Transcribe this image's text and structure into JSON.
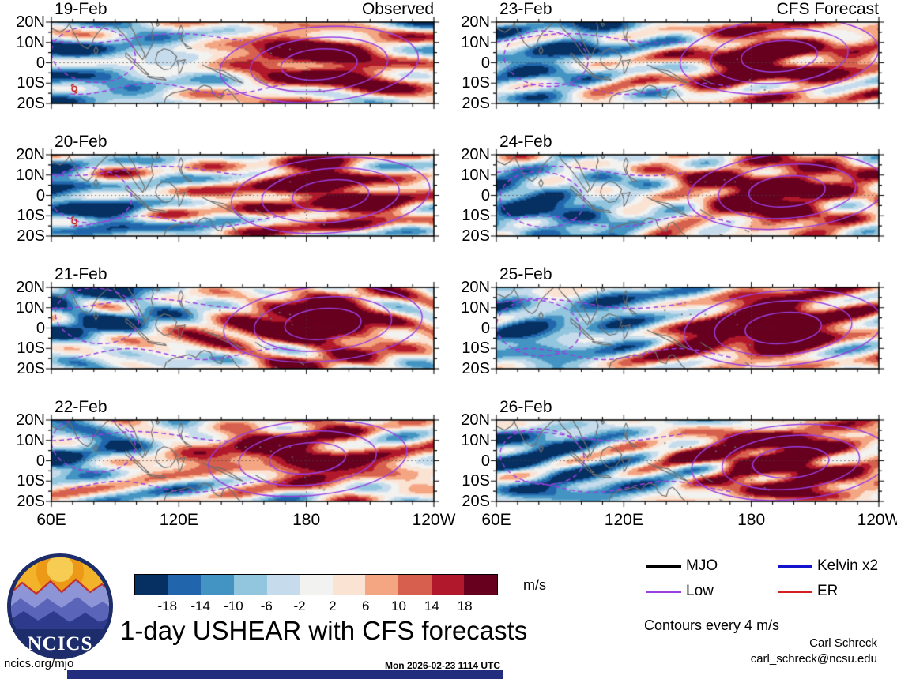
{
  "title": "1-day USHEAR with CFS forecasts",
  "columns": {
    "left_title": "Observed",
    "right_title": "CFS Forecast"
  },
  "panels": [
    {
      "date": "19-Feb",
      "column": "Observed"
    },
    {
      "date": "20-Feb",
      "column": "Observed"
    },
    {
      "date": "21-Feb",
      "column": "Observed"
    },
    {
      "date": "22-Feb",
      "column": "Observed"
    },
    {
      "date": "23-Feb",
      "column": "CFS Forecast"
    },
    {
      "date": "24-Feb",
      "column": "CFS Forecast"
    },
    {
      "date": "25-Feb",
      "column": "CFS Forecast"
    },
    {
      "date": "26-Feb",
      "column": "CFS Forecast"
    }
  ],
  "axes": {
    "y_ticks": [
      "20N",
      "10N",
      "0",
      "10S",
      "20S"
    ],
    "x_ticks": [
      "60E",
      "120E",
      "180",
      "120W"
    ]
  },
  "colorbar": {
    "colors": [
      "#053061",
      "#2166ac",
      "#4393c3",
      "#92c5de",
      "#c6dcec",
      "#f2f2f0",
      "#fbe3d4",
      "#f4a582",
      "#d6604d",
      "#b2182b",
      "#67001f"
    ],
    "ticks": [
      "-18",
      "-14",
      "-10",
      "-6",
      "-2",
      "2",
      "6",
      "10",
      "14",
      "18"
    ],
    "units_label": "m/s"
  },
  "legend": {
    "items": [
      {
        "label": "MJO",
        "color": "#000000"
      },
      {
        "label": "Kelvin x2",
        "color": "#1414cc"
      },
      {
        "label": "Low",
        "color": "#9b3fe0"
      },
      {
        "label": "ER",
        "color": "#d42020"
      }
    ],
    "note": "Contours every 4 m/s"
  },
  "logo": {
    "label": "NCICS"
  },
  "footer": {
    "site_link": "ncics.org/mjo",
    "timestamp": "Mon 2026-02-23 1114 UTC",
    "credit_name": "Carl Schreck",
    "credit_email": "carl_schreck@ncsu.edu"
  },
  "chart_data": {
    "type": "heatmap",
    "title": "1-day USHEAR with CFS forecasts",
    "variable": "USHEAR (zonal wind shear) anomaly",
    "units": "m/s",
    "layout": "8 map panels: 4 rows x 2 columns; left column Observed (19-Feb to 22-Feb), right column CFS Forecast (23-Feb to 26-Feb)",
    "x_axis": {
      "tick_labels": [
        "60E",
        "120E",
        "180",
        "120W"
      ],
      "range_deg_east": [
        60,
        240
      ],
      "gridline": "dashed at 180"
    },
    "y_axis": {
      "tick_labels": [
        "20N",
        "10N",
        "0",
        "10S",
        "20S"
      ],
      "range_deg_north": [
        -20,
        20
      ],
      "gridline": "dashed at equator"
    },
    "color_scale": {
      "bin_boundaries": [
        -18,
        -14,
        -10,
        -6,
        -2,
        2,
        6,
        10,
        14,
        18
      ],
      "bin_colors": [
        "#053061",
        "#2166ac",
        "#4393c3",
        "#92c5de",
        "#c6dcec",
        "#f2f2f0",
        "#fbe3d4",
        "#f4a582",
        "#d6604d",
        "#b2182b",
        "#67001f"
      ],
      "units": "m/s"
    },
    "columns": [
      {
        "title": "Observed",
        "dates": [
          "19-Feb",
          "20-Feb",
          "21-Feb",
          "22-Feb"
        ]
      },
      {
        "title": "CFS Forecast",
        "dates": [
          "23-Feb",
          "24-Feb",
          "25-Feb",
          "26-Feb"
        ]
      }
    ],
    "overlays": {
      "legend_contours": [
        {
          "label": "MJO",
          "color": "#000000"
        },
        {
          "label": "Kelvin x2",
          "color": "#1414cc"
        },
        {
          "label": "Low",
          "color": "#9b3fe0"
        },
        {
          "label": "ER",
          "color": "#d42020"
        }
      ],
      "contour_interval": "Contours every 4 m/s",
      "coastlines": "gray outlines of Indian Ocean / Maritime Continent / Australia / west Pacific",
      "storm_symbols": [
        {
          "panel": "19-Feb",
          "approx_location": "near 75E, 13S"
        },
        {
          "panel": "20-Feb",
          "approx_location": "near 75E, 13S"
        }
      ]
    },
    "pattern_summary": "Negative (blue, < -2 m/s) shear anomalies dominate the Indian Ocean and far western Pacific; strong positive (red, > 14-18 m/s) anomalies lie along the equator near and east of the Date Line, enclosed by solid purple low-frequency contours, with dashed purple (negative) contours over the Indian Ocean sector. The forecast panels continue eastward propagation/intensification of the positive anomaly."
  }
}
